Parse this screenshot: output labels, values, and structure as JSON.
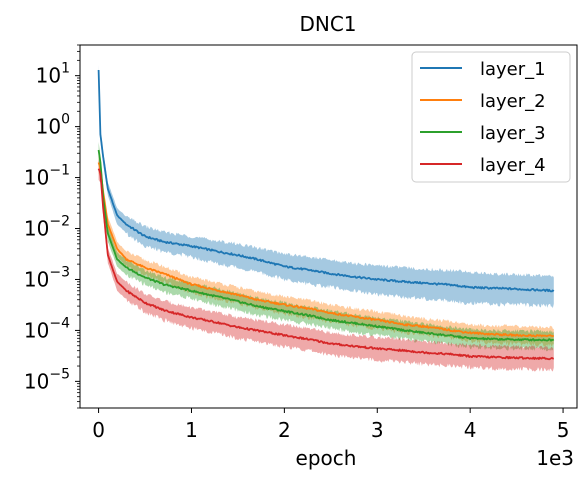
{
  "chart_data": {
    "type": "line",
    "title": "DNC1",
    "xlabel": "epoch",
    "ylabel": "",
    "x_offset_label": "1e3",
    "x_scale_factor": 1000,
    "xlim": [
      -200,
      5150
    ],
    "ylim": [
      3e-06,
      40
    ],
    "yscale": "log",
    "x_ticks": [
      0,
      1000,
      2000,
      3000,
      4000,
      5000
    ],
    "x_tick_labels": [
      "0",
      "1",
      "2",
      "3",
      "4",
      "5"
    ],
    "y_ticks": [
      1e-05,
      0.0001,
      0.001,
      0.01,
      0.1,
      1,
      10
    ],
    "y_tick_labels": [
      {
        "base": "10",
        "exp": "−5"
      },
      {
        "base": "10",
        "exp": "−4"
      },
      {
        "base": "10",
        "exp": "−3"
      },
      {
        "base": "10",
        "exp": "−2"
      },
      {
        "base": "10",
        "exp": "−1"
      },
      {
        "base": "10",
        "exp": "0"
      },
      {
        "base": "10",
        "exp": "1"
      }
    ],
    "grid": false,
    "legend_position": "upper right",
    "x": [
      0,
      20,
      50,
      100,
      200,
      300,
      500,
      700,
      1000,
      1300,
      1500,
      1700,
      2000,
      2300,
      2500,
      2800,
      3000,
      3300,
      3500,
      3800,
      4000,
      4200,
      4500,
      4900
    ],
    "series": [
      {
        "name": "layer_1",
        "color": "#1f77b4",
        "values": [
          13,
          0.7,
          0.25,
          0.06,
          0.018,
          0.012,
          0.007,
          0.0055,
          0.0045,
          0.0035,
          0.003,
          0.0025,
          0.0018,
          0.0015,
          0.0013,
          0.0011,
          0.001,
          0.0009,
          0.00085,
          0.00078,
          0.0007,
          0.00068,
          0.00065,
          0.0006
        ],
        "band_lower": [
          8,
          0.5,
          0.18,
          0.045,
          0.012,
          0.008,
          0.0045,
          0.0035,
          0.0028,
          0.002,
          0.0017,
          0.0014,
          0.001,
          0.0008,
          0.0007,
          0.00058,
          0.0005,
          0.00045,
          0.00042,
          0.00038,
          0.00034,
          0.00033,
          0.00032,
          0.0003
        ],
        "band_upper": [
          16,
          0.9,
          0.32,
          0.08,
          0.025,
          0.017,
          0.011,
          0.0085,
          0.007,
          0.0056,
          0.005,
          0.0042,
          0.0032,
          0.0027,
          0.0024,
          0.002,
          0.0019,
          0.0017,
          0.0016,
          0.0015,
          0.0014,
          0.0013,
          0.00125,
          0.00115
        ]
      },
      {
        "name": "layer_2",
        "color": "#ff7f0e",
        "values": [
          0.2,
          0.15,
          0.05,
          0.012,
          0.004,
          0.0025,
          0.0017,
          0.0013,
          0.0008,
          0.0006,
          0.0005,
          0.0004,
          0.00032,
          0.00026,
          0.00022,
          0.00018,
          0.00016,
          0.00013,
          0.00012,
          0.0001,
          9e-05,
          8.5e-05,
          8e-05,
          7.8e-05
        ],
        "band_lower": [
          0.12,
          0.1,
          0.035,
          0.008,
          0.0028,
          0.0018,
          0.0012,
          0.0009,
          0.00055,
          0.0004,
          0.00034,
          0.00027,
          0.00021,
          0.00017,
          0.00015,
          0.00012,
          0.00011,
          9e-05,
          8.5e-05,
          7e-05,
          6.2e-05,
          5.8e-05,
          5.5e-05,
          5.2e-05
        ],
        "band_upper": [
          0.3,
          0.22,
          0.07,
          0.017,
          0.0055,
          0.0035,
          0.0024,
          0.0018,
          0.0011,
          0.00085,
          0.0007,
          0.00058,
          0.00046,
          0.00038,
          0.00032,
          0.00026,
          0.00023,
          0.00019,
          0.00017,
          0.00015,
          0.00013,
          0.000125,
          0.00012,
          0.000115
        ]
      },
      {
        "name": "layer_3",
        "color": "#2ca02c",
        "values": [
          0.35,
          0.2,
          0.04,
          0.008,
          0.0025,
          0.0017,
          0.0011,
          0.0008,
          0.0006,
          0.00045,
          0.00037,
          0.0003,
          0.00024,
          0.00019,
          0.00016,
          0.000135,
          0.00012,
          0.0001,
          9e-05,
          7.8e-05,
          7e-05,
          6.8e-05,
          6.6e-05,
          6.5e-05
        ],
        "band_lower": [
          0.2,
          0.13,
          0.028,
          0.0055,
          0.0018,
          0.0012,
          0.0008,
          0.00057,
          0.00042,
          0.0003,
          0.00025,
          0.0002,
          0.00016,
          0.00013,
          0.00011,
          9e-05,
          8e-05,
          6.8e-05,
          6e-05,
          5.2e-05,
          4.7e-05,
          4.5e-05,
          4.4e-05,
          4.3e-05
        ],
        "band_upper": [
          0.5,
          0.28,
          0.055,
          0.011,
          0.0034,
          0.0024,
          0.0015,
          0.0011,
          0.00085,
          0.00065,
          0.00054,
          0.00044,
          0.00035,
          0.00028,
          0.00024,
          0.0002,
          0.00018,
          0.00015,
          0.000135,
          0.000115,
          0.000105,
          0.0001,
          9.8e-05,
          9.6e-05
        ]
      },
      {
        "name": "layer_4",
        "color": "#d62728",
        "values": [
          0.15,
          0.12,
          0.025,
          0.003,
          0.0009,
          0.0006,
          0.00035,
          0.00025,
          0.00018,
          0.00014,
          0.000115,
          0.0001,
          8e-05,
          6.5e-05,
          5.5e-05,
          4.8e-05,
          4.4e-05,
          4e-05,
          3.7e-05,
          3.4e-05,
          3.1e-05,
          3e-05,
          2.9e-05,
          2.8e-05
        ],
        "band_lower": [
          0.09,
          0.08,
          0.017,
          0.0021,
          0.0006,
          0.0004,
          0.00023,
          0.00016,
          0.00011,
          8.5e-05,
          7e-05,
          6e-05,
          4.8e-05,
          3.9e-05,
          3.3e-05,
          2.9e-05,
          2.6e-05,
          2.4e-05,
          2.2e-05,
          2e-05,
          1.9e-05,
          1.8e-05,
          1.75e-05,
          1.7e-05
        ],
        "band_upper": [
          0.22,
          0.17,
          0.035,
          0.0042,
          0.0013,
          0.0009,
          0.00052,
          0.00038,
          0.00028,
          0.00022,
          0.00018,
          0.00016,
          0.00013,
          0.000105,
          9e-05,
          7.8e-05,
          7.2e-05,
          6.6e-05,
          6e-05,
          5.6e-05,
          5.2e-05,
          5e-05,
          4.8e-05,
          4.6e-05
        ]
      }
    ]
  }
}
